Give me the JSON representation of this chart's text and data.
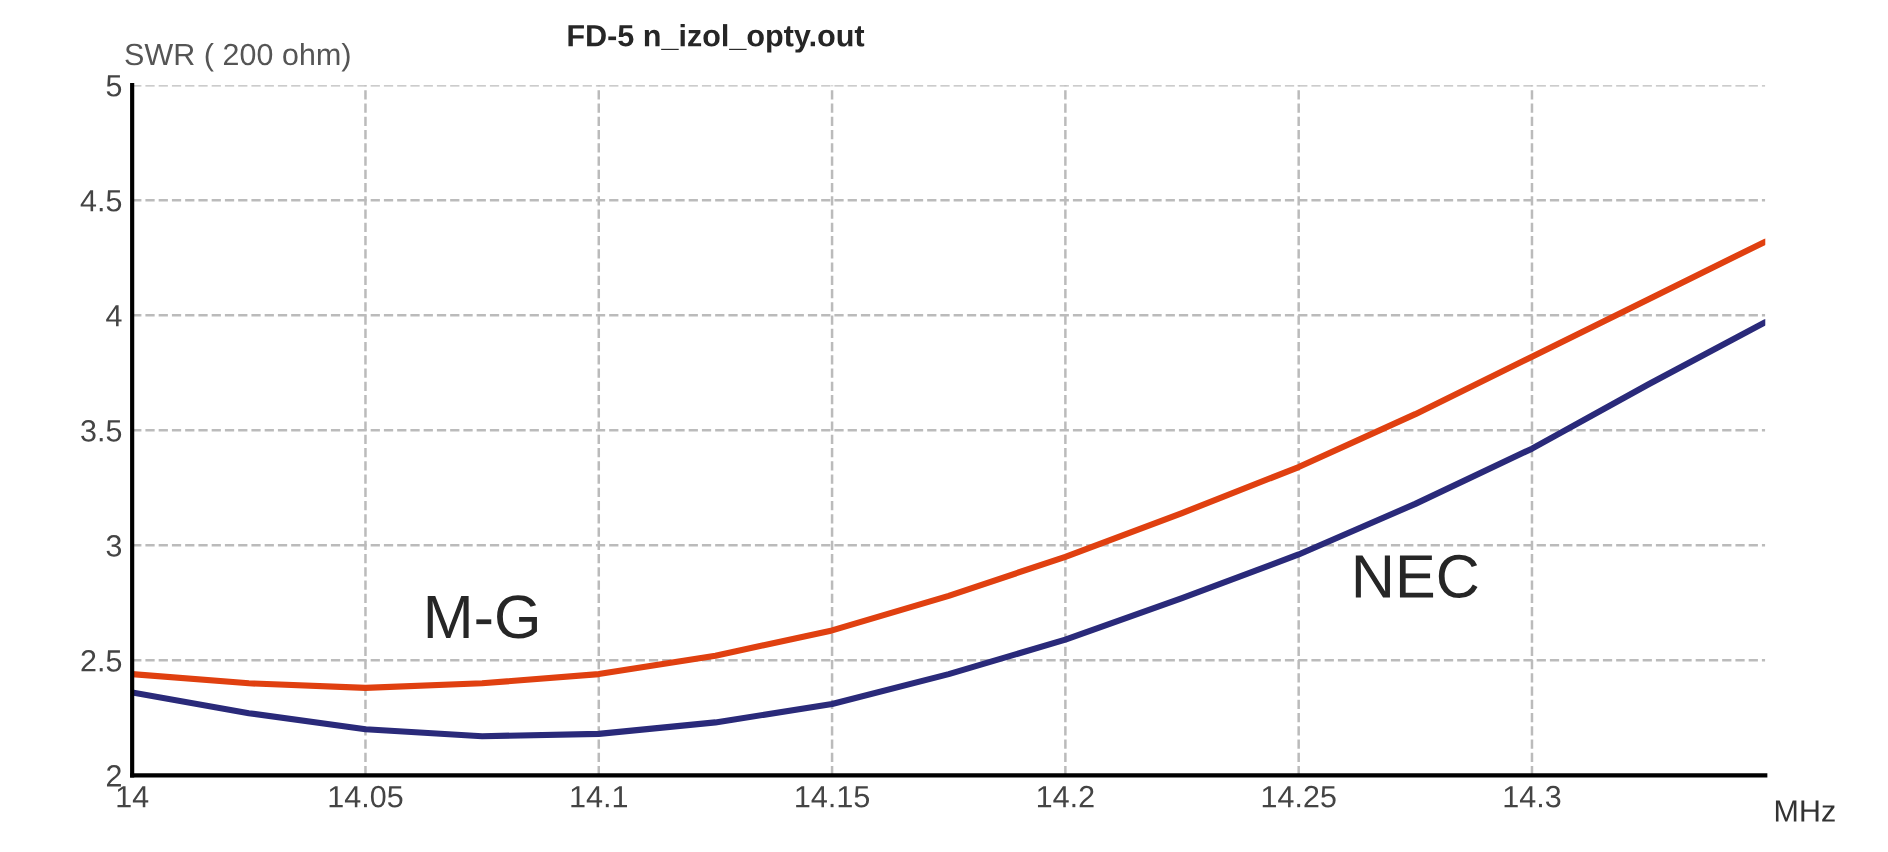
{
  "chart_data": {
    "type": "line",
    "title": "FD-5 n_izol_opty.out",
    "ylabel": "SWR ( 200 ohm)",
    "xlabel": "MHz",
    "xlim": [
      14,
      14.35
    ],
    "xticks": [
      14,
      14.05,
      14.1,
      14.15,
      14.2,
      14.25,
      14.3
    ],
    "ylim": [
      2,
      5
    ],
    "yticks": [
      2,
      2.5,
      3,
      3.5,
      4,
      4.5,
      5
    ],
    "grid": true,
    "marker": "none",
    "line_style": "solid",
    "series": [
      {
        "name": "M-G",
        "color": "#e04010",
        "x": [
          14,
          14.025,
          14.05,
          14.075,
          14.1,
          14.125,
          14.15,
          14.175,
          14.2,
          14.225,
          14.25,
          14.275,
          14.3,
          14.325,
          14.35
        ],
        "values": [
          2.44,
          2.4,
          2.38,
          2.4,
          2.44,
          2.52,
          2.63,
          2.78,
          2.95,
          3.14,
          3.34,
          3.57,
          3.82,
          4.07,
          4.32
        ]
      },
      {
        "name": "NEC",
        "color": "#2a2a7a",
        "x": [
          14,
          14.025,
          14.05,
          14.075,
          14.1,
          14.125,
          14.15,
          14.175,
          14.2,
          14.225,
          14.25,
          14.275,
          14.3,
          14.325,
          14.35
        ],
        "values": [
          2.36,
          2.27,
          2.2,
          2.17,
          2.18,
          2.23,
          2.31,
          2.44,
          2.59,
          2.77,
          2.96,
          3.18,
          3.42,
          3.7,
          3.97
        ]
      }
    ]
  }
}
